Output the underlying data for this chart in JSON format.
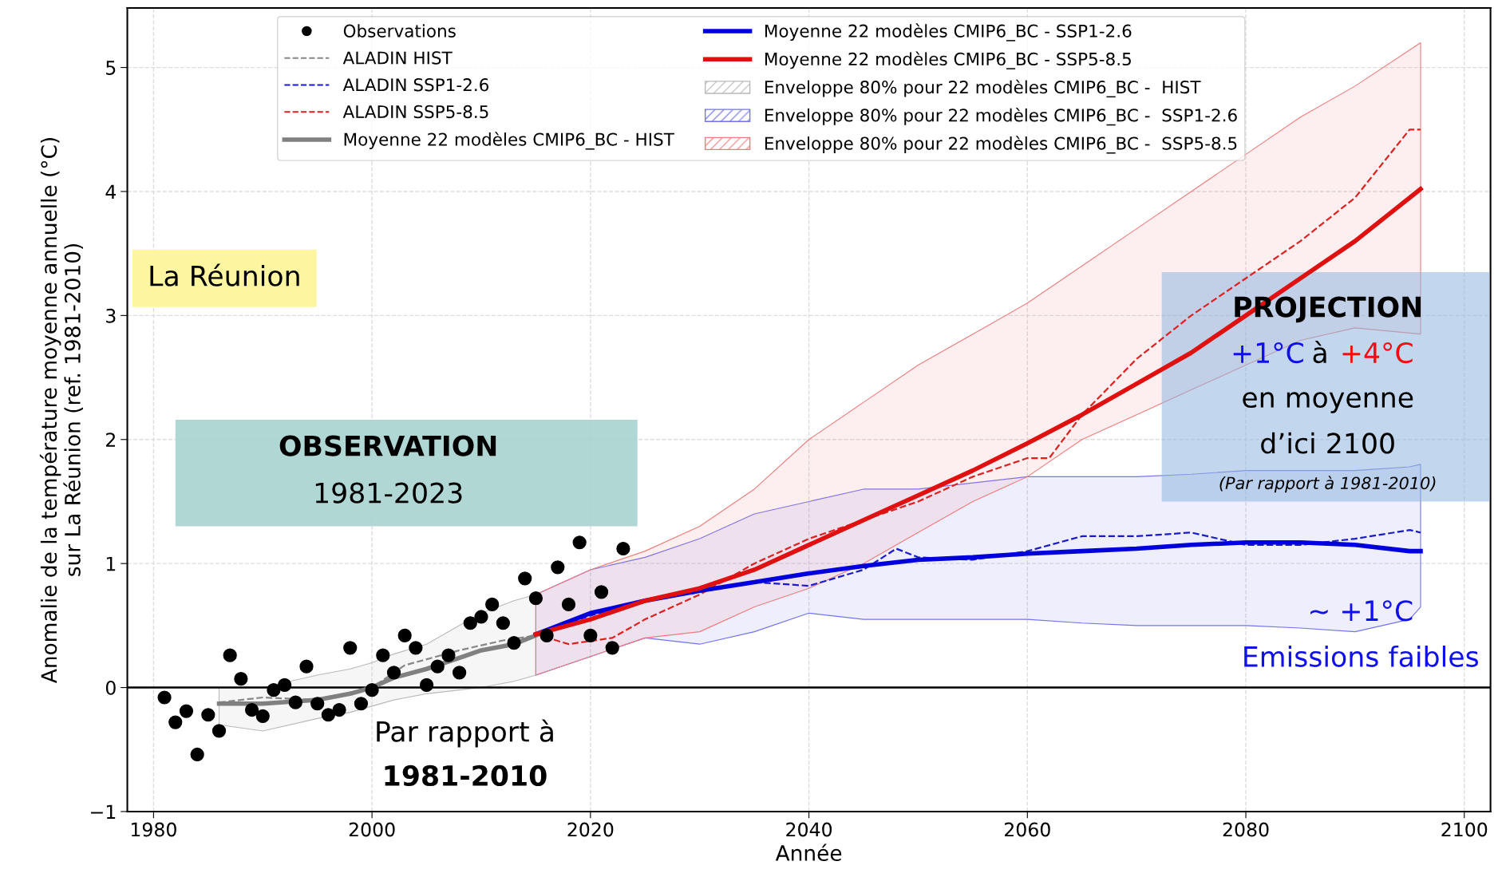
{
  "chart_data": {
    "type": "line",
    "xlabel": "Année",
    "ylabel": "Anomalie de la température moyenne annuelle (°C)\nsur La Réunion (ref. 1981-2010)",
    "xlim": [
      1977.6,
      2102.4
    ],
    "xticks": [
      1980,
      2000,
      2020,
      2040,
      2060,
      2080,
      2100
    ],
    "ylim": [
      -1,
      5.48
    ],
    "yticks": [
      {
        "value": -1,
        "label": "−1"
      },
      0,
      1,
      2,
      3,
      4,
      5
    ],
    "grid": true,
    "legend": "top",
    "ref_lines": [
      {
        "axis": "y",
        "value": 0,
        "color": "#000000"
      }
    ],
    "series": [
      {
        "type": "scatter",
        "name": "Observations",
        "color": "#000000",
        "marker": "circle",
        "x": [
          1981,
          1982,
          1983,
          1984,
          1985,
          1986,
          1987,
          1988,
          1989,
          1990,
          1991,
          1992,
          1993,
          1994,
          1995,
          1996,
          1997,
          1998,
          1999,
          2000,
          2001,
          2002,
          2003,
          2004,
          2005,
          2006,
          2007,
          2008,
          2009,
          2010,
          2011,
          2012,
          2013,
          2014,
          2015,
          2016,
          2017,
          2018,
          2019,
          2020,
          2021,
          2022,
          2023
        ],
        "values": [
          -0.08,
          -0.28,
          -0.19,
          -0.54,
          -0.22,
          -0.35,
          0.26,
          0.07,
          -0.18,
          -0.23,
          -0.02,
          0.02,
          -0.12,
          0.17,
          -0.13,
          -0.22,
          -0.18,
          0.32,
          -0.13,
          -0.02,
          0.26,
          0.12,
          0.42,
          0.32,
          0.02,
          0.17,
          0.26,
          0.12,
          0.52,
          0.57,
          0.67,
          0.52,
          0.36,
          0.88,
          0.72,
          0.42,
          0.97,
          0.67,
          1.17,
          0.42,
          0.77,
          0.32,
          1.12
        ]
      },
      {
        "name": "ALADIN HIST",
        "color": "#888888",
        "line_style": "dashed",
        "x": [
          1986,
          1990,
          1995,
          2000,
          2003,
          2008,
          2012,
          2015
        ],
        "values": [
          -0.12,
          -0.08,
          -0.1,
          0.0,
          0.18,
          0.3,
          0.38,
          0.42
        ]
      },
      {
        "name": "ALADIN SSP1-2.6",
        "color": "#1a1acc",
        "line_style": "dashed",
        "x": [
          2015,
          2020,
          2025,
          2030,
          2035,
          2040,
          2045,
          2048,
          2050,
          2055,
          2060,
          2065,
          2070,
          2075,
          2080,
          2085,
          2090,
          2095,
          2096
        ],
        "values": [
          0.43,
          0.58,
          0.7,
          0.77,
          0.85,
          0.82,
          0.95,
          1.12,
          1.05,
          1.03,
          1.1,
          1.22,
          1.22,
          1.25,
          1.15,
          1.15,
          1.2,
          1.27,
          1.25
        ]
      },
      {
        "name": "ALADIN SSP5-8.5",
        "color": "#dd2222",
        "line_style": "dashed",
        "x": [
          2015,
          2018,
          2022,
          2025,
          2030,
          2035,
          2040,
          2045,
          2050,
          2055,
          2060,
          2062,
          2065,
          2070,
          2075,
          2080,
          2085,
          2090,
          2095,
          2096
        ],
        "values": [
          0.43,
          0.35,
          0.4,
          0.55,
          0.75,
          1.0,
          1.2,
          1.35,
          1.5,
          1.7,
          1.85,
          1.85,
          2.2,
          2.65,
          3.0,
          3.3,
          3.6,
          3.95,
          4.5,
          4.5
        ]
      },
      {
        "name": "Moyenne 22 modèles CMIP6_BC - HIST",
        "color": "#808080",
        "line_style": "solid",
        "x": [
          1986,
          1990,
          1995,
          1998,
          2000,
          2002,
          2005,
          2008,
          2010,
          2013,
          2015
        ],
        "values": [
          -0.13,
          -0.13,
          -0.1,
          -0.05,
          0.0,
          0.08,
          0.15,
          0.24,
          0.3,
          0.35,
          0.42
        ],
        "lower": [
          -0.3,
          -0.35,
          -0.25,
          -0.2,
          -0.15,
          -0.1,
          -0.05,
          -0.02,
          0.0,
          0.05,
          0.1
        ],
        "upper": [
          0.0,
          0.0,
          0.1,
          0.15,
          0.2,
          0.27,
          0.35,
          0.5,
          0.6,
          0.7,
          0.75
        ]
      },
      {
        "name": "Moyenne 22 modèles CMIP6_BC - SSP1-2.6",
        "color": "#0000dd",
        "line_style": "solid",
        "x": [
          2015,
          2020,
          2025,
          2030,
          2035,
          2040,
          2045,
          2050,
          2055,
          2060,
          2065,
          2070,
          2075,
          2080,
          2085,
          2090,
          2095,
          2096
        ],
        "values": [
          0.43,
          0.6,
          0.7,
          0.78,
          0.85,
          0.92,
          0.98,
          1.03,
          1.05,
          1.08,
          1.1,
          1.12,
          1.15,
          1.17,
          1.17,
          1.15,
          1.1,
          1.1
        ],
        "lower": [
          0.1,
          0.25,
          0.4,
          0.35,
          0.45,
          0.6,
          0.55,
          0.55,
          0.55,
          0.55,
          0.52,
          0.5,
          0.5,
          0.5,
          0.48,
          0.45,
          0.55,
          0.65
        ],
        "upper": [
          0.75,
          0.95,
          1.05,
          1.2,
          1.4,
          1.5,
          1.6,
          1.6,
          1.65,
          1.7,
          1.7,
          1.7,
          1.72,
          1.75,
          1.75,
          1.75,
          1.78,
          1.8
        ]
      },
      {
        "name": "Moyenne 22 modèles CMIP6_BC - SSP5-8.5",
        "color": "#e01010",
        "line_style": "solid",
        "x": [
          2015,
          2020,
          2025,
          2030,
          2035,
          2040,
          2045,
          2050,
          2055,
          2060,
          2065,
          2070,
          2075,
          2080,
          2085,
          2090,
          2096
        ],
        "values": [
          0.43,
          0.55,
          0.7,
          0.8,
          0.95,
          1.15,
          1.35,
          1.55,
          1.75,
          1.97,
          2.2,
          2.45,
          2.7,
          3.0,
          3.3,
          3.6,
          4.02
        ],
        "lower": [
          0.1,
          0.25,
          0.4,
          0.45,
          0.65,
          0.8,
          1.0,
          1.25,
          1.5,
          1.7,
          2.0,
          2.2,
          2.4,
          2.6,
          2.8,
          2.9,
          2.85
        ],
        "upper": [
          0.75,
          0.95,
          1.1,
          1.3,
          1.6,
          2.0,
          2.3,
          2.6,
          2.85,
          3.1,
          3.4,
          3.7,
          4.0,
          4.3,
          4.6,
          4.85,
          5.2
        ]
      }
    ],
    "annotations": [
      "La Réunion",
      "OBSERVATION",
      "1981-2023",
      "Par rapport à",
      "1981-2010",
      "PROJECTION",
      "+1°C",
      "à",
      "+4°C",
      "en moyenne",
      "d’ici 2100",
      "(Par rapport à 1981-2010)",
      "~ +1°C",
      "Emissions faibles",
      "Enveloppe 80% pour 22 modèles CMIP6_BC -  HIST",
      "Enveloppe 80% pour 22 modèles CMIP6_BC -  SSP1-2.6",
      "Enveloppe 80% pour 22 modèles CMIP6_BC -  SSP5-8.5"
    ]
  }
}
